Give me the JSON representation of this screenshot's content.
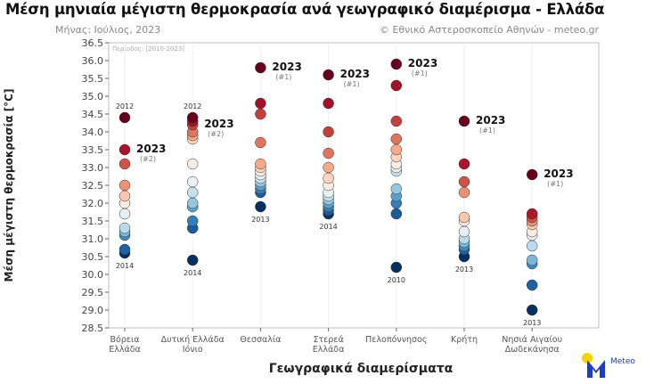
{
  "title": "Μέση μηνιαία μέγιστη θερμοκρασία ανά γεωγραφικό διαμέρισμα - Ελλάδα",
  "subtitle": "Μήνας: Ιούλιος, 2023",
  "credit": "© Εθνικό Αστεροσκοπείο Αθηνών - meteo.gr",
  "logo_text": "Meteo",
  "chart_data": {
    "type": "scatter",
    "period_note": "Περίοδος: [2010-2023]",
    "xlabel": "Γεωγραφικά διαμερίσματα",
    "ylabel": "Μέση μέγιστη θερμοκρασία [°C]",
    "ylim": [
      28.5,
      36.5
    ],
    "yticks": [
      "28.5",
      "29.0",
      "29.5",
      "30.0",
      "30.5",
      "31.0",
      "31.5",
      "32.0",
      "32.5",
      "33.0",
      "33.5",
      "34.0",
      "34.5",
      "35.0",
      "35.5",
      "36.0",
      "36.5"
    ],
    "colormap": "RdBu_r",
    "grid": "vertical",
    "categories": [
      {
        "label": [
          "Βόρεια",
          "Ελλάδα"
        ],
        "values": [
          34.4,
          33.5,
          33.1,
          32.5,
          32.2,
          32.0,
          31.7,
          31.3,
          31.2,
          31.1,
          30.7,
          30.6
        ],
        "max_year": "2012",
        "min_year": "2014",
        "value_2023": 33.5,
        "label_2023": "2023",
        "rank_2023": "(#2)"
      },
      {
        "label": [
          "Δυτική Ελλάδα",
          "Ιόνιο"
        ],
        "values": [
          34.4,
          34.3,
          34.2,
          34.0,
          33.9,
          33.8,
          33.1,
          32.6,
          32.3,
          32.0,
          31.9,
          31.5,
          31.3,
          30.4
        ],
        "max_year": "2012",
        "min_year": "2014",
        "value_2023": 34.2,
        "label_2023": "2023",
        "rank_2023": "(#2)"
      },
      {
        "label": [
          "Θεσσαλία"
        ],
        "values": [
          35.8,
          34.8,
          34.5,
          33.7,
          33.1,
          33.0,
          32.9,
          32.8,
          32.7,
          32.6,
          32.5,
          32.4,
          32.3,
          31.9
        ],
        "max_year": "",
        "min_year": "2013",
        "value_2023": 35.8,
        "label_2023": "2023",
        "rank_2023": "(#1)"
      },
      {
        "label": [
          "Στερεά",
          "Ελλάδα"
        ],
        "values": [
          35.6,
          34.8,
          34.0,
          33.4,
          33.0,
          32.7,
          32.5,
          32.3,
          32.2,
          32.1,
          32.0,
          31.9,
          31.8,
          31.7
        ],
        "max_year": "",
        "min_year": "2014",
        "value_2023": 35.6,
        "label_2023": "2023",
        "rank_2023": "(#1)"
      },
      {
        "label": [
          "Πελοπόννησος"
        ],
        "values": [
          35.9,
          35.3,
          34.3,
          33.8,
          33.5,
          33.3,
          33.1,
          33.0,
          32.9,
          32.4,
          32.2,
          32.0,
          31.7,
          30.2
        ],
        "max_year": "",
        "min_year": "2010",
        "value_2023": 35.9,
        "label_2023": "2023",
        "rank_2023": "(#1)"
      },
      {
        "label": [
          "Κρήτη"
        ],
        "values": [
          34.3,
          33.1,
          32.6,
          32.3,
          31.6,
          31.5,
          31.2,
          31.0,
          30.9,
          30.8,
          30.7,
          30.5
        ],
        "max_year": "",
        "min_year": "2013",
        "value_2023": 34.3,
        "label_2023": "2023",
        "rank_2023": "(#1)"
      },
      {
        "label": [
          "Νησιά Αιγαίου",
          "Δωδεκάνησα"
        ],
        "values": [
          32.8,
          31.7,
          31.6,
          31.5,
          31.4,
          31.2,
          31.1,
          30.8,
          30.4,
          30.3,
          29.7,
          29.0
        ],
        "max_year": "",
        "min_year": "2013",
        "value_2023": 32.8,
        "label_2023": "2023",
        "rank_2023": "(#1)"
      }
    ]
  }
}
